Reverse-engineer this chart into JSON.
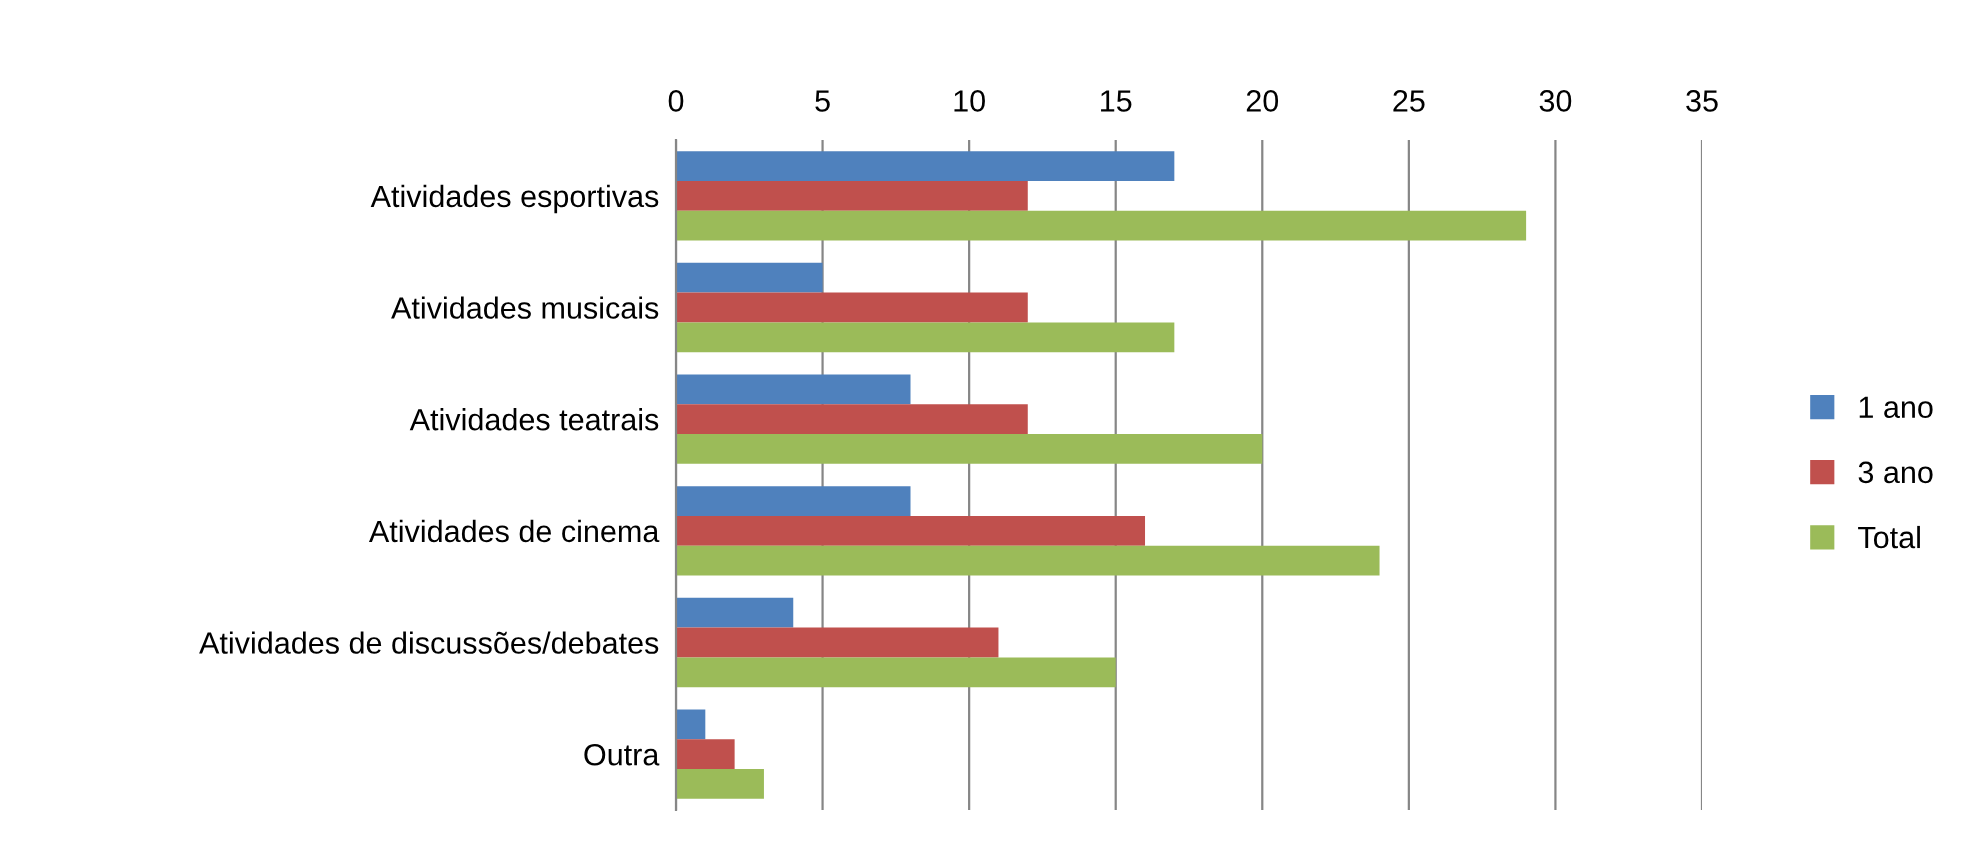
{
  "chart_data": {
    "type": "bar",
    "orientation": "horizontal",
    "categories": [
      "Atividades esportivas",
      "Atividades musicais",
      "Atividades teatrais",
      "Atividades de cinema",
      "Atividades de discussões/debates",
      "Outra"
    ],
    "series": [
      {
        "name": "1 ano",
        "color": "#4f81bd",
        "values": [
          17,
          5,
          8,
          8,
          4,
          1
        ]
      },
      {
        "name": "3 ano",
        "color": "#c0504d",
        "values": [
          12,
          12,
          12,
          16,
          11,
          2
        ]
      },
      {
        "name": "Total",
        "color": "#9bbb59",
        "values": [
          29,
          17,
          20,
          24,
          15,
          3
        ]
      }
    ],
    "xlim": [
      0,
      35
    ],
    "xticks": [
      0,
      5,
      10,
      15,
      20,
      25,
      30,
      35
    ],
    "grid": "x",
    "legend": "right"
  }
}
